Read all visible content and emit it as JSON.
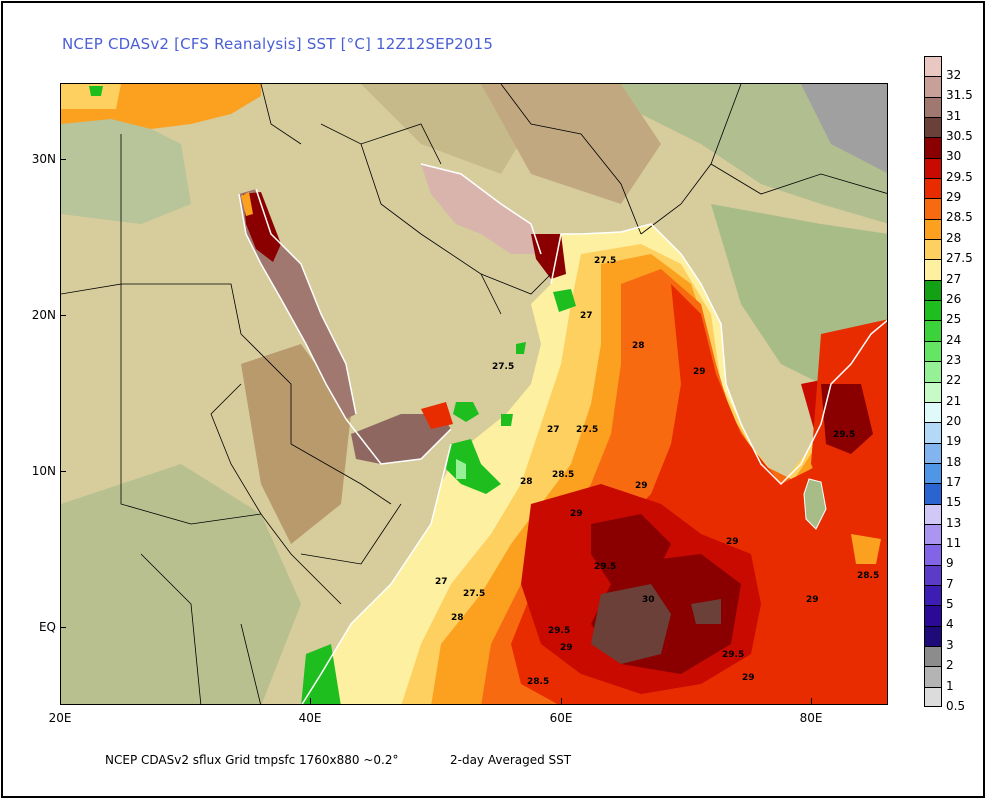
{
  "title": "NCEP CDASv2 [CFS Reanalysis] SST [°C] 12Z12SEP2015",
  "footer": {
    "source": "NCEP CDASv2 sflux Grid tmpsfc 1760x880 ~0.2°",
    "note": "2-day Averaged SST"
  },
  "axes": {
    "lat_labels": [
      "30N",
      "20N",
      "10N",
      "EQ"
    ],
    "lon_labels": [
      "20E",
      "40E",
      "60E",
      "80E"
    ]
  },
  "colorbar": {
    "levels": [
      {
        "label": "32",
        "color": "#e8c8c0"
      },
      {
        "label": "31.5",
        "color": "#c8a098"
      },
      {
        "label": "31",
        "color": "#a07870"
      },
      {
        "label": "30.5",
        "color": "#6a4038"
      },
      {
        "label": "30",
        "color": "#8a0000"
      },
      {
        "label": "29.5",
        "color": "#c80a00"
      },
      {
        "label": "29",
        "color": "#e82c00"
      },
      {
        "label": "28.5",
        "color": "#f86a10"
      },
      {
        "label": "28",
        "color": "#fca020"
      },
      {
        "label": "27.5",
        "color": "#fdd060"
      },
      {
        "label": "27",
        "color": "#fdf0a0"
      },
      {
        "label": "26",
        "color": "#14a014"
      },
      {
        "label": "25",
        "color": "#1ebe1e"
      },
      {
        "label": "24",
        "color": "#3cd23c"
      },
      {
        "label": "23",
        "color": "#64e664"
      },
      {
        "label": "22",
        "color": "#96f096"
      },
      {
        "label": "21",
        "color": "#c8fac8"
      },
      {
        "label": "20",
        "color": "#e0fafa"
      },
      {
        "label": "19",
        "color": "#b4d8f8"
      },
      {
        "label": "18",
        "color": "#82b4f0"
      },
      {
        "label": "17",
        "color": "#5096e6"
      },
      {
        "label": "15",
        "color": "#2a64d0"
      },
      {
        "label": "13",
        "color": "#d2c8f8"
      },
      {
        "label": "11",
        "color": "#aa96f0"
      },
      {
        "label": "9",
        "color": "#8264e6"
      },
      {
        "label": "7",
        "color": "#5a3cc8"
      },
      {
        "label": "5",
        "color": "#3c1eb4"
      },
      {
        "label": "4",
        "color": "#2a0a96"
      },
      {
        "label": "3",
        "color": "#1e0a78"
      },
      {
        "label": "2",
        "color": "#8c8c8c"
      },
      {
        "label": "1",
        "color": "#b4b4b4"
      },
      {
        "label": "0.5",
        "color": "#dcdcdc"
      }
    ]
  },
  "contour_labels": [
    {
      "text": "27.5"
    },
    {
      "text": "27"
    },
    {
      "text": "28"
    },
    {
      "text": "29"
    },
    {
      "text": "27.5"
    },
    {
      "text": "27"
    },
    {
      "text": "27.5"
    },
    {
      "text": "29.5"
    },
    {
      "text": "28.5"
    },
    {
      "text": "28"
    },
    {
      "text": "29"
    },
    {
      "text": "29"
    },
    {
      "text": "29"
    },
    {
      "text": "29.5"
    },
    {
      "text": "30"
    },
    {
      "text": "28.5"
    },
    {
      "text": "27"
    },
    {
      "text": "27.5"
    },
    {
      "text": "28"
    },
    {
      "text": "29"
    },
    {
      "text": "29.5"
    },
    {
      "text": "29"
    },
    {
      "text": "29.5"
    },
    {
      "text": "29"
    },
    {
      "text": "28.5"
    }
  ],
  "colors": {
    "land_light": "#d8d0a0",
    "land_green": "#a8b888",
    "land_highland": "#b8a070",
    "title": "#4a5fd6"
  }
}
